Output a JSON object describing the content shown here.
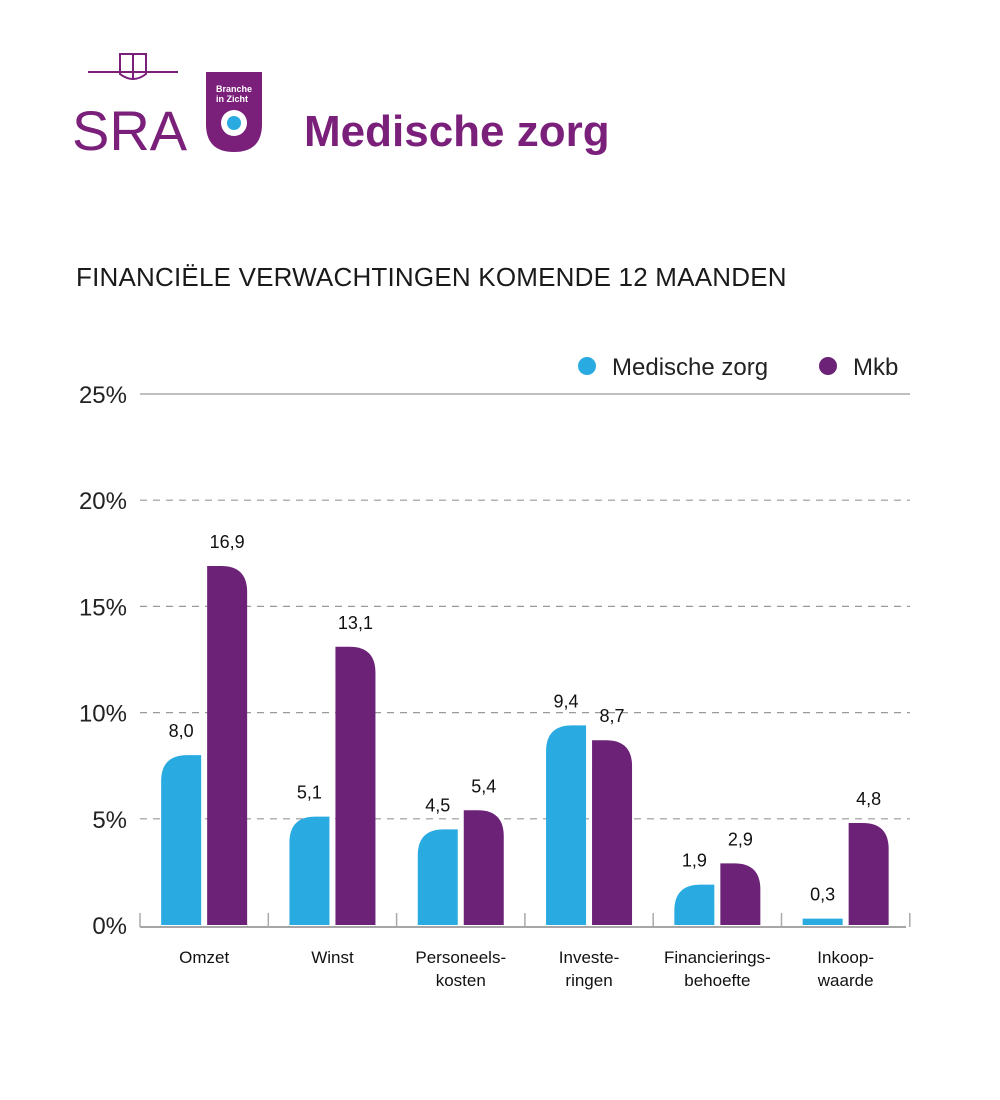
{
  "brand": {
    "logo_text": "SRA",
    "badge_text_line1": "Branche",
    "badge_text_line2": "in Zicht"
  },
  "page_title": "Medische zorg",
  "colors": {
    "brand_purple": "#7a1f7a",
    "series_medische_zorg": "#29abe2",
    "series_mkb": "#6b2277",
    "axis": "#888888",
    "grid": "#999999"
  },
  "chart_data": {
    "type": "bar",
    "title": "FINANCIËLE VERWACHTINGEN KOMENDE 12 MAANDEN",
    "categories": [
      "Omzet",
      "Winst",
      "Personeels-\nkosten",
      "Investe-\nringen",
      "Financierings-\nbehoefte",
      "Inkoop-\nwaarde"
    ],
    "series": [
      {
        "name": "Medische zorg",
        "values": [
          8.0,
          5.1,
          4.5,
          9.4,
          1.9,
          0.3
        ],
        "labels": [
          "8,0",
          "5,1",
          "4,5",
          "9,4",
          "1,9",
          "0,3"
        ]
      },
      {
        "name": "Mkb",
        "values": [
          16.9,
          13.1,
          5.4,
          8.7,
          2.9,
          4.8
        ],
        "labels": [
          "16,9",
          "13,1",
          "5,4",
          "8,7",
          "2,9",
          "4,8"
        ]
      }
    ],
    "yticks": [
      "0%",
      "5%",
      "10%",
      "15%",
      "20%",
      "25%"
    ],
    "ylim": [
      0,
      25
    ],
    "grid": true,
    "legend_position": "top-right"
  }
}
